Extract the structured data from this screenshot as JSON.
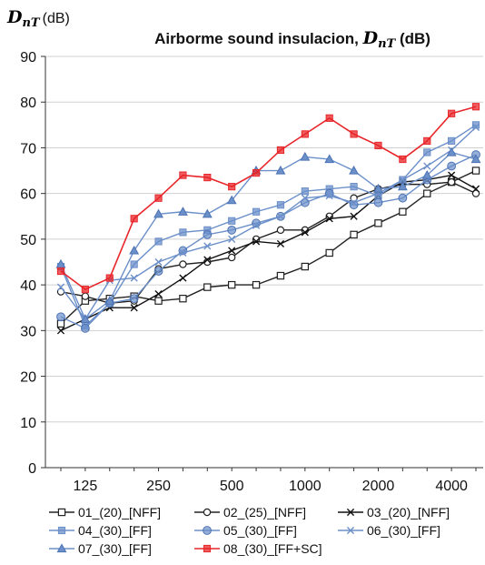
{
  "chart_data": {
    "type": "line",
    "title_prefix": "Airborme sound insulacion, ",
    "title_symbol": "D",
    "title_subscript": "nT",
    "title_suffix": " (dB)",
    "ylabel_symbol": "D",
    "ylabel_subscript": "nT",
    "ylabel_unit": "(dB)",
    "ylim": [
      0,
      90
    ],
    "yticks": [
      "0",
      "10",
      "20",
      "30",
      "40",
      "50",
      "60",
      "70",
      "80",
      "90"
    ],
    "x": [
      100,
      125,
      160,
      200,
      250,
      315,
      400,
      500,
      630,
      800,
      1000,
      1250,
      1600,
      2000,
      2500,
      3150,
      4000,
      5000
    ],
    "xtick_labels": [
      "125",
      "250",
      "500",
      "1000",
      "2000",
      "4000"
    ],
    "x_scale": "log (1/3-octave bands, Hz)",
    "grid": "horizontal",
    "legend_position": "bottom",
    "series": [
      {
        "name": "01_(20)_[NFF]",
        "color": "#222222",
        "marker": "square-open",
        "values": [
          31.5,
          36.5,
          37,
          37.5,
          36.5,
          37,
          39.5,
          40,
          40,
          42,
          44,
          47,
          51,
          53.5,
          56,
          60,
          62.5,
          65
        ]
      },
      {
        "name": "02_(25)_[NFF]",
        "color": "#222222",
        "marker": "circle-open",
        "values": [
          38.5,
          37.5,
          36,
          36.5,
          43.5,
          44.5,
          45,
          46,
          50,
          52,
          52,
          55,
          59,
          61,
          62,
          62,
          62.5,
          60
        ]
      },
      {
        "name": "03_(20)_[NFF]",
        "color": "#111111",
        "marker": "x",
        "values": [
          30,
          32.5,
          35,
          35,
          38,
          41.5,
          45.5,
          47.5,
          49.5,
          49,
          51.5,
          54.5,
          55,
          59.5,
          62.5,
          63,
          64,
          61
        ]
      },
      {
        "name": "04_(30)_[FF]",
        "color": "#6b8fc9",
        "marker": "square-filled",
        "values": [
          44,
          31,
          36,
          44.5,
          49.5,
          51.5,
          52,
          54,
          56,
          57.5,
          60.5,
          61,
          61.5,
          59.5,
          63,
          69,
          71.5,
          75
        ]
      },
      {
        "name": "05_(30)_[FF]",
        "color": "#6b8fc9",
        "marker": "circle-filled",
        "values": [
          33,
          30.5,
          36,
          37,
          43,
          47.5,
          51,
          52,
          53.5,
          55,
          58,
          60,
          57.5,
          58,
          59,
          63,
          66,
          68.5
        ]
      },
      {
        "name": "06_(30)_[FF]",
        "color": "#6b8fc9",
        "marker": "x",
        "values": [
          39.5,
          32.5,
          41,
          41.5,
          45,
          47,
          48.5,
          50,
          53,
          55,
          59,
          59.5,
          58,
          60,
          63,
          66,
          69.5,
          74.5
        ]
      },
      {
        "name": "07_(30)_[FF]",
        "color": "#6b8fc9",
        "marker": "triangle-filled",
        "values": [
          44.5,
          32.5,
          36.5,
          47.5,
          55.5,
          56,
          55.5,
          58.5,
          65,
          65,
          68,
          67.5,
          65,
          61,
          61.5,
          64,
          69,
          67.5
        ]
      },
      {
        "name": "08_(30)_[FF+SC]",
        "color": "#e8262a",
        "marker": "square-filled",
        "values": [
          43,
          39,
          41.5,
          54.5,
          59,
          64,
          63.5,
          61.5,
          64.5,
          69.5,
          73,
          76.5,
          73,
          70.5,
          67.5,
          71.5,
          77.5,
          79
        ]
      }
    ]
  }
}
